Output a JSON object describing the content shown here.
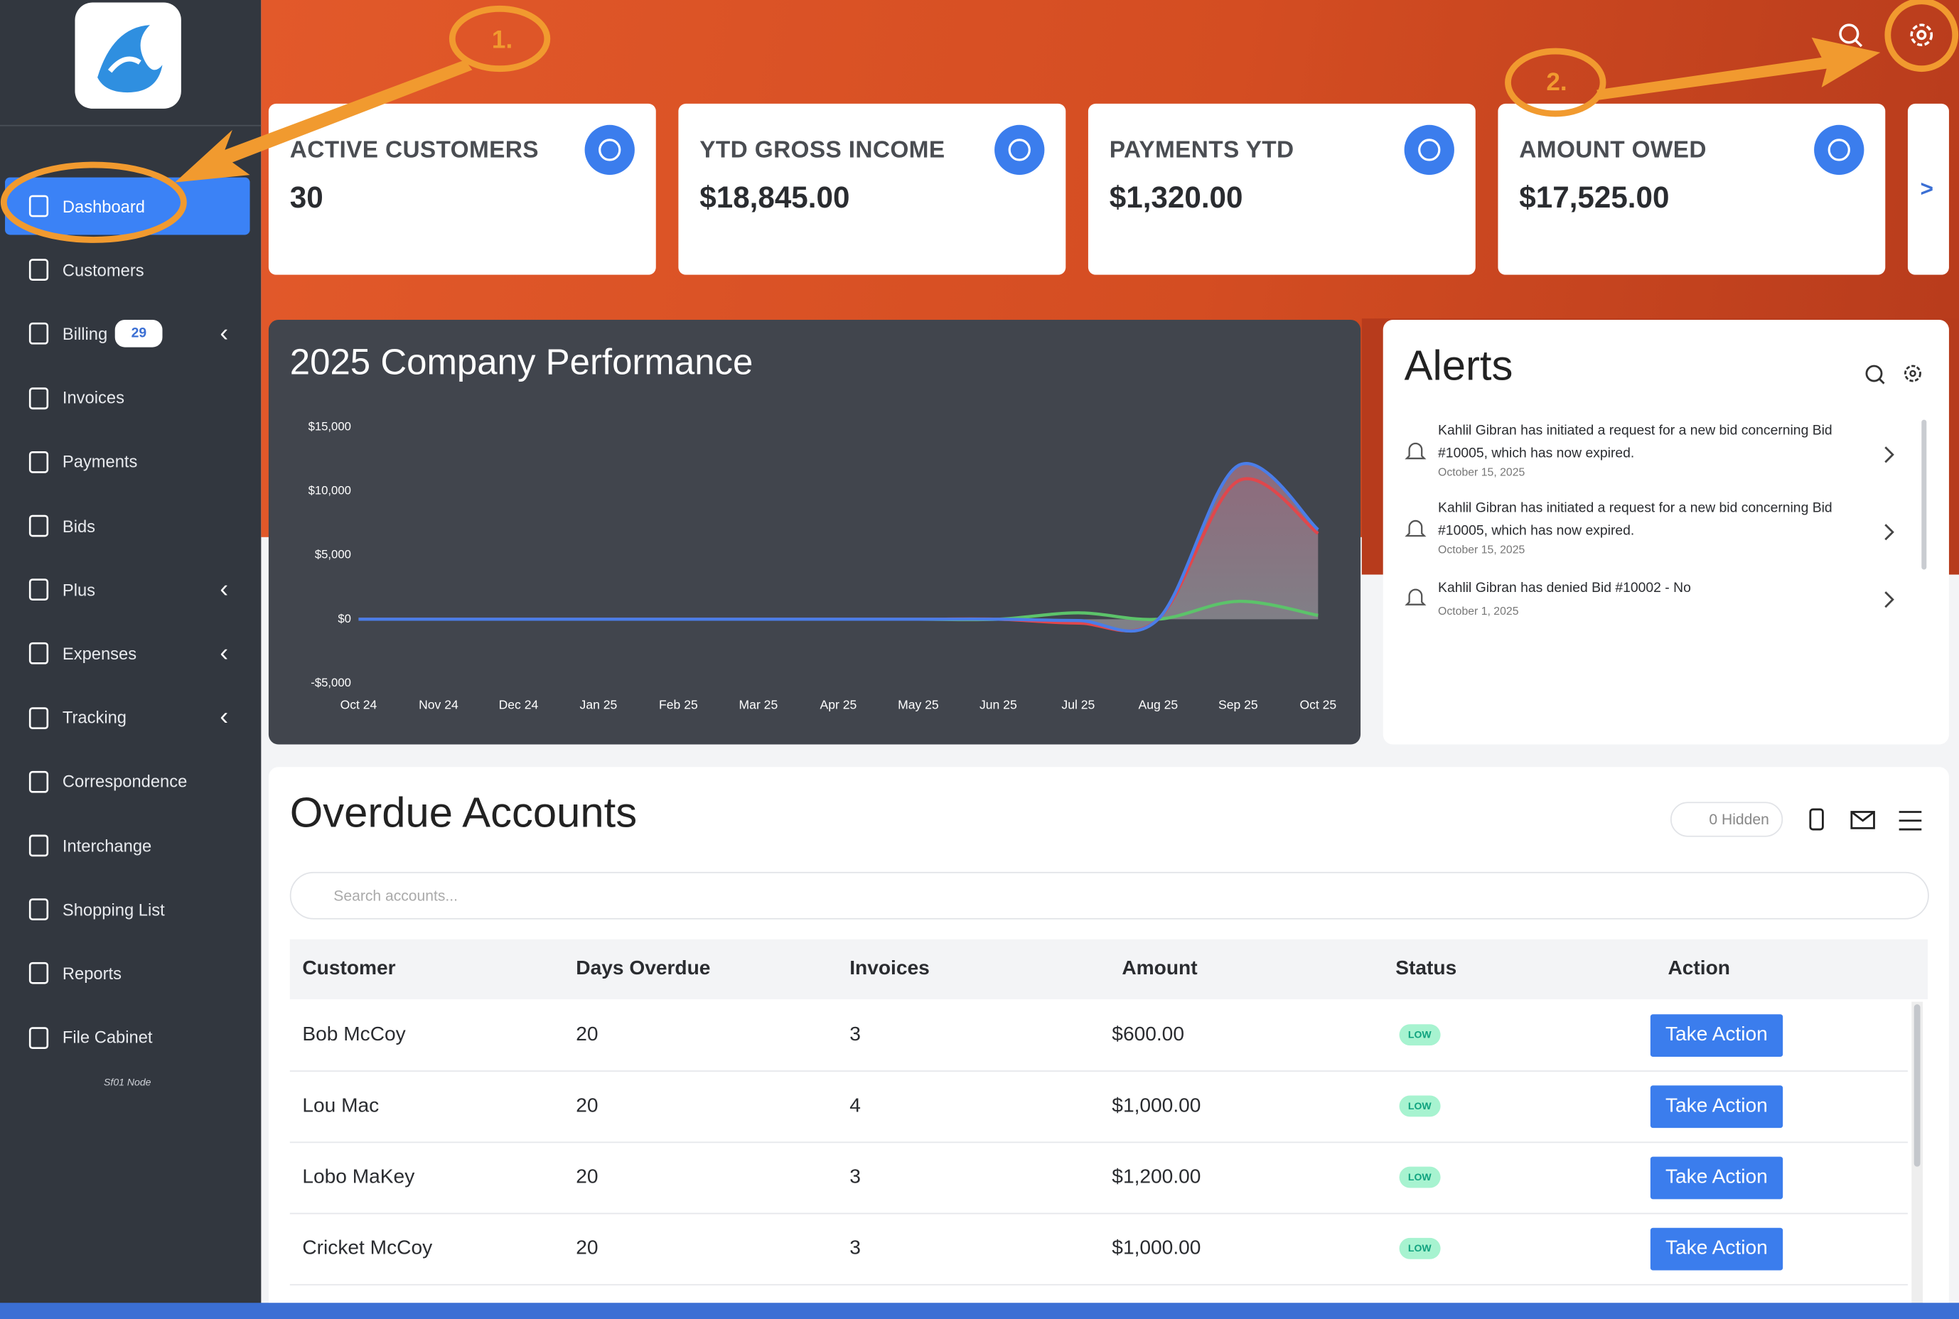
{
  "annotations": [
    "1.",
    "2."
  ],
  "sidebar": {
    "items": [
      {
        "label": "Dashboard"
      },
      {
        "label": "Customers"
      },
      {
        "label": "Billing",
        "badge": 29
      },
      {
        "label": "Invoices"
      },
      {
        "label": "Payments"
      },
      {
        "label": "Bids"
      },
      {
        "label": "Plus"
      },
      {
        "label": "Expenses"
      },
      {
        "label": "Tracking"
      },
      {
        "label": "Correspondence"
      },
      {
        "label": "Interchange"
      },
      {
        "label": "Shopping List"
      },
      {
        "label": "Reports"
      },
      {
        "label": "File Cabinet"
      }
    ],
    "footer": "Sf01 Node"
  },
  "cards": [
    {
      "label": "ACTIVE CUSTOMERS",
      "value": "30"
    },
    {
      "label": "YTD GROSS INCOME",
      "value": "$18,845.00"
    },
    {
      "label": "PAYMENTS YTD",
      "value": "$1,320.00"
    },
    {
      "label": "AMOUNT OWED",
      "value": "$17,525.00"
    }
  ],
  "cards_next": ">",
  "chart": {
    "type": "line",
    "title": "2025 Company Performance",
    "categories": [
      "Oct 24",
      "Nov 24",
      "Dec 24",
      "Jan 25",
      "Feb 25",
      "Mar 25",
      "Apr 25",
      "May 25",
      "Jun 25",
      "Jul 25",
      "Aug 25",
      "Sep 25",
      "Oct 25"
    ],
    "series": [
      {
        "color": "#4a7de8",
        "values": [
          0,
          0,
          0,
          0,
          0,
          0,
          0,
          0,
          0,
          -100,
          0,
          12000,
          7000
        ]
      },
      {
        "color": "#e0474c",
        "values": [
          0,
          0,
          0,
          0,
          0,
          0,
          0,
          0,
          0,
          -300,
          0,
          10800,
          6700
        ]
      },
      {
        "color": "#5cc36a",
        "values": [
          0,
          0,
          0,
          0,
          0,
          0,
          0,
          0,
          0,
          500,
          0,
          1400,
          300
        ]
      }
    ],
    "ylim": [
      -5000,
      15000
    ],
    "yticks": [
      {
        "value": -5000,
        "label": "-$5,000"
      },
      {
        "value": 0,
        "label": "$0"
      },
      {
        "value": 5000,
        "label": "$5,000"
      },
      {
        "value": 10000,
        "label": "$10,000"
      },
      {
        "value": 15000,
        "label": "$15,000"
      }
    ]
  },
  "alerts": {
    "title": "Alerts",
    "items": [
      {
        "text": "Kahlil Gibran has initiated a request for a new bid concerning Bid #10005, which has now expired.",
        "date": "October 15, 2025"
      },
      {
        "text": "Kahlil Gibran has initiated a request for a new bid concerning Bid #10005, which has now expired.",
        "date": "October 15, 2025"
      },
      {
        "text": "Kahlil Gibran has denied Bid #10002 - No",
        "date": "October 1, 2025"
      }
    ]
  },
  "overdue": {
    "title": "Overdue Accounts",
    "hidden": "0 Hidden",
    "search_placeholder": "Search accounts...",
    "columns": [
      "Customer",
      "Days Overdue",
      "Invoices",
      "Amount",
      "Status",
      "Action"
    ],
    "rows": [
      [
        "Bob McCoy",
        20,
        3,
        "$600.00",
        "LOW",
        "Take Action"
      ],
      [
        "Lou Mac",
        20,
        4,
        "$1,000.00",
        "LOW",
        "Take Action"
      ],
      [
        "Lobo MaKey",
        20,
        3,
        "$1,200.00",
        "LOW",
        "Take Action"
      ],
      [
        "Cricket McCoy",
        20,
        3,
        "$1,000.00",
        "LOW",
        "Take Action"
      ]
    ]
  }
}
